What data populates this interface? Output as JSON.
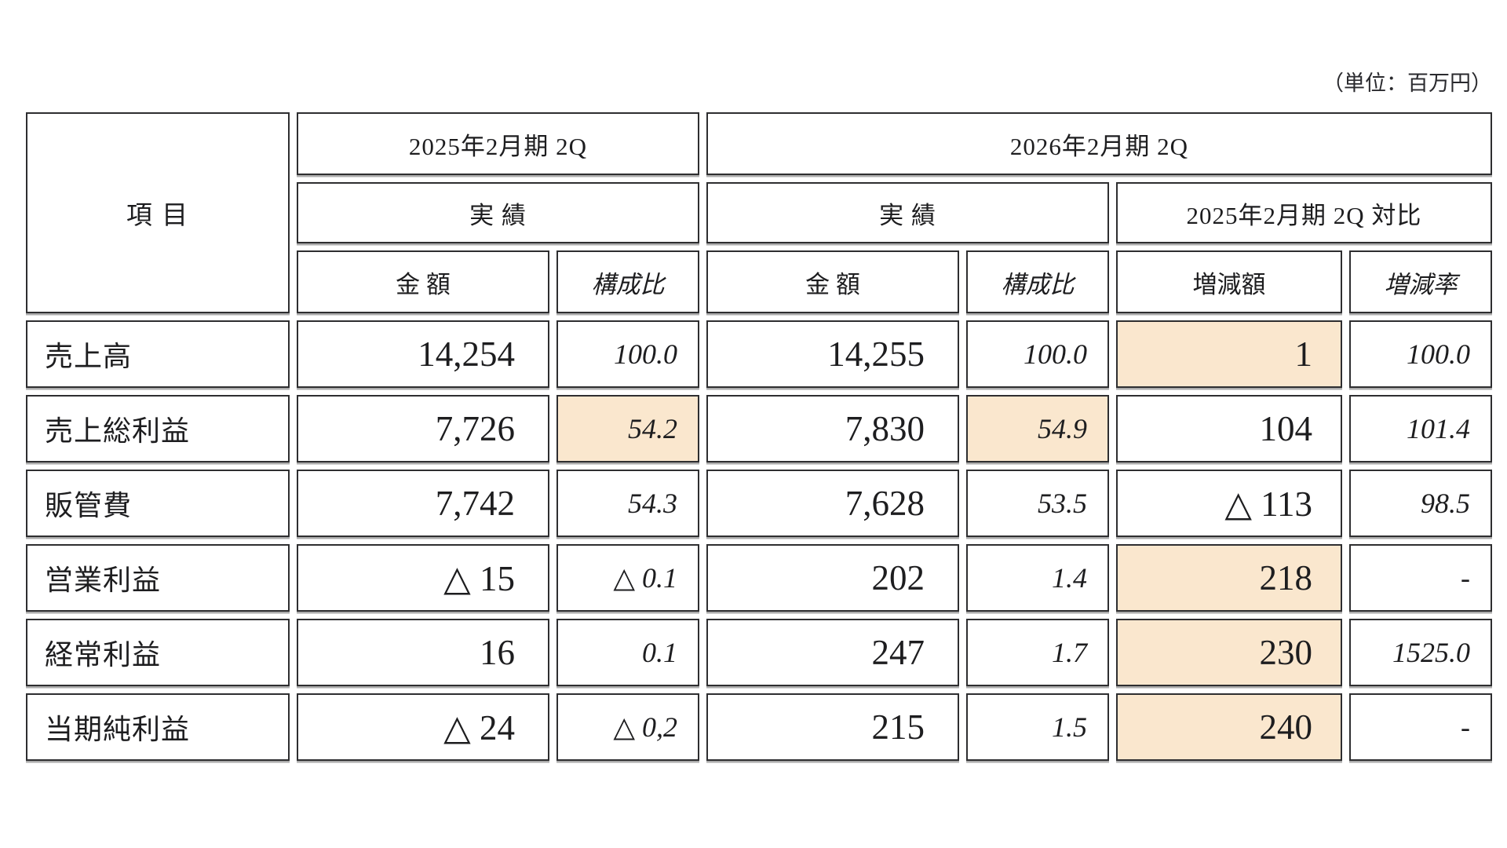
{
  "unit_note": "（単位：百万円）",
  "colors": {
    "highlight": "#FAE7CE",
    "border": "#2e2e30"
  },
  "table": {
    "item_header": "項 目",
    "group_headers": {
      "y2025": "2025年2月期 2Q",
      "y2026": "2026年2月期 2Q"
    },
    "sub_headers": {
      "actual_2025": "実 績",
      "actual_2026": "実 績",
      "comparison": "2025年2月期 2Q 対比"
    },
    "col_headers": {
      "amount_2025": "金 額",
      "ratio_2025": "構成比",
      "amount_2026": "金 額",
      "ratio_2026": "構成比",
      "diff_amount": "増減額",
      "diff_rate": "増減率"
    },
    "rows": [
      {
        "label": "売上高",
        "amount_2025": "14,254",
        "ratio_2025": "100.0",
        "amount_2026": "14,255",
        "ratio_2026": "100.0",
        "diff_amount": "1",
        "diff_rate": "100.0"
      },
      {
        "label": "売上総利益",
        "amount_2025": "7,726",
        "ratio_2025": "54.2",
        "amount_2026": "7,830",
        "ratio_2026": "54.9",
        "diff_amount": "104",
        "diff_rate": "101.4"
      },
      {
        "label": "販管費",
        "amount_2025": "7,742",
        "ratio_2025": "54.3",
        "amount_2026": "7,628",
        "ratio_2026": "53.5",
        "diff_amount": "△ 113",
        "diff_rate": "98.5"
      },
      {
        "label": "営業利益",
        "amount_2025": "△ 15",
        "ratio_2025": "△ 0.1",
        "amount_2026": "202",
        "ratio_2026": "1.4",
        "diff_amount": "218",
        "diff_rate": "-"
      },
      {
        "label": "経常利益",
        "amount_2025": "16",
        "ratio_2025": "0.1",
        "amount_2026": "247",
        "ratio_2026": "1.7",
        "diff_amount": "230",
        "diff_rate": "1525.0"
      },
      {
        "label": "当期純利益",
        "amount_2025": "△ 24",
        "ratio_2025": "△ 0,2",
        "amount_2026": "215",
        "ratio_2026": "1.5",
        "diff_amount": "240",
        "diff_rate": "-"
      }
    ]
  }
}
